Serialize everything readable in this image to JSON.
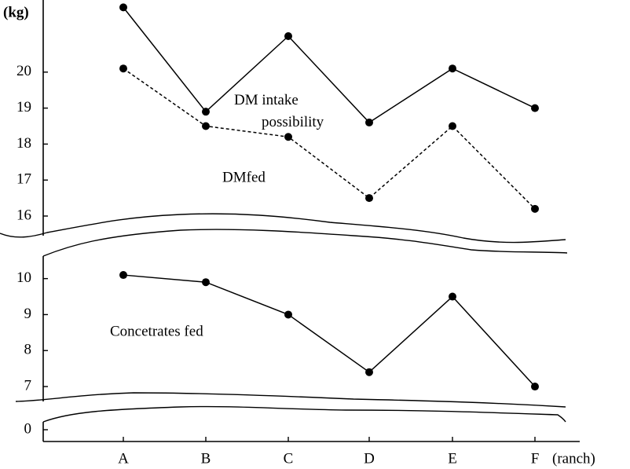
{
  "chart_data": [
    {
      "type": "line",
      "y_label": "(kg)",
      "categories": [
        "A",
        "B",
        "C",
        "D",
        "E",
        "F"
      ],
      "series": [
        {
          "name": "DM intake possibility",
          "color": "#000000",
          "dash": false,
          "values": [
            21.8,
            18.9,
            21.0,
            18.6,
            20.1,
            19.0
          ]
        },
        {
          "name": "DMfed",
          "color": "#000000",
          "dash": true,
          "values": [
            20.1,
            18.5,
            18.2,
            16.5,
            18.5,
            16.2
          ]
        }
      ],
      "ylim": [
        15.3,
        22
      ],
      "yticks": [
        16,
        17,
        18,
        19,
        20
      ]
    },
    {
      "type": "line",
      "x_label": "(ranch)",
      "categories": [
        "A",
        "B",
        "C",
        "D",
        "E",
        "F"
      ],
      "series": [
        {
          "name": "Concetrates fed",
          "color": "#000000",
          "dash": false,
          "values": [
            10.1,
            9.9,
            9.0,
            7.4,
            9.5,
            7.0
          ]
        }
      ],
      "ylim": [
        0,
        10.5
      ],
      "axis_break": [
        0.5,
        6.3
      ],
      "yticks": [
        0,
        7,
        8,
        9,
        10
      ]
    }
  ]
}
